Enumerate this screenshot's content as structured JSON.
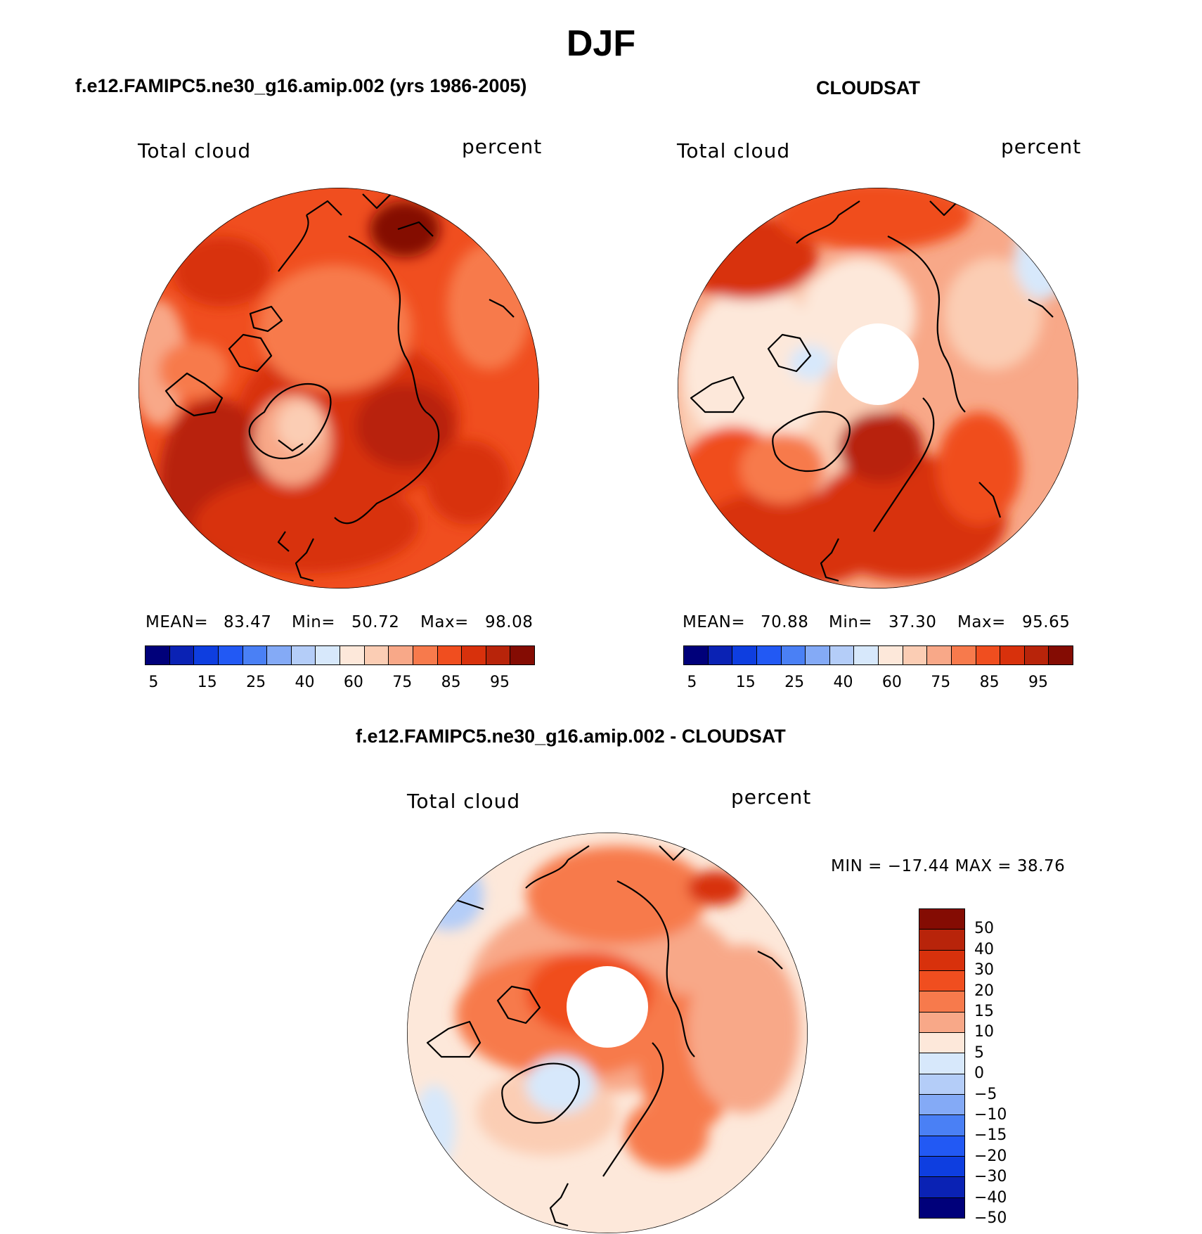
{
  "figure": {
    "title": "DJF"
  },
  "panels": {
    "model": {
      "title": "f.e12.FAMIPC5.ne30_g16.amip.002 (yrs 1986-2005)",
      "variable": "Total cloud",
      "units": "percent",
      "mean_label": "MEAN=",
      "mean": "83.47",
      "min_label": "Min=",
      "min": "50.72",
      "max_label": "Max=",
      "max": "98.08"
    },
    "obs": {
      "title": "CLOUDSAT",
      "variable": "Total cloud",
      "units": "percent",
      "mean_label": "MEAN=",
      "mean": "70.88",
      "min_label": "Min=",
      "min": "37.30",
      "max_label": "Max=",
      "max": "95.65"
    },
    "diff": {
      "title": "f.e12.FAMIPC5.ne30_g16.amip.002 - CLOUDSAT",
      "variable": "Total cloud",
      "units": "percent",
      "minmax_text": "MIN = −17.44 MAX =   38.76"
    }
  },
  "colorbars": {
    "abs": {
      "colors": [
        "#00007a",
        "#0a22b4",
        "#0e3ee0",
        "#2259f4",
        "#4a80f5",
        "#84aaf6",
        "#b4cdf8",
        "#d7e8fb",
        "#fde8da",
        "#fbcdb4",
        "#f8a888",
        "#f77a4c",
        "#f04e1f",
        "#d8310c",
        "#b8240a",
        "#840c03"
      ],
      "tick_labels": [
        "5",
        "15",
        "25",
        "40",
        "60",
        "75",
        "85",
        "95"
      ]
    },
    "diff": {
      "colors": [
        "#840c03",
        "#b8240a",
        "#d8310c",
        "#f04e1f",
        "#f77a4c",
        "#f8a888",
        "#fde8da",
        "#d7e8fb",
        "#b4cdf8",
        "#84aaf6",
        "#4a80f5",
        "#2259f4",
        "#0e3ee0",
        "#0a22b4",
        "#00007a"
      ],
      "tick_labels": [
        "50",
        "40",
        "30",
        "20",
        "15",
        "10",
        "5",
        "0",
        "−5",
        "−10",
        "−15",
        "−20",
        "−30",
        "−40",
        "−50"
      ]
    }
  },
  "map_fills": {
    "model": {
      "base": "#f04e1f",
      "patches": [
        "#d8310c",
        "#b8240a",
        "#840c03",
        "#f77a4c",
        "#f8a888",
        "#fbcdb4"
      ]
    },
    "obs": {
      "base": "#f8a888",
      "patches": [
        "#fbcdb4",
        "#fde8da",
        "#f77a4c",
        "#f04e1f",
        "#d8310c",
        "#b8240a",
        "#d7e8fb"
      ]
    },
    "diff": {
      "base": "#fde8da",
      "patches": [
        "#f8a888",
        "#f77a4c",
        "#f04e1f",
        "#d8310c",
        "#fbcdb4",
        "#d7e8fb",
        "#b4cdf8"
      ]
    }
  }
}
